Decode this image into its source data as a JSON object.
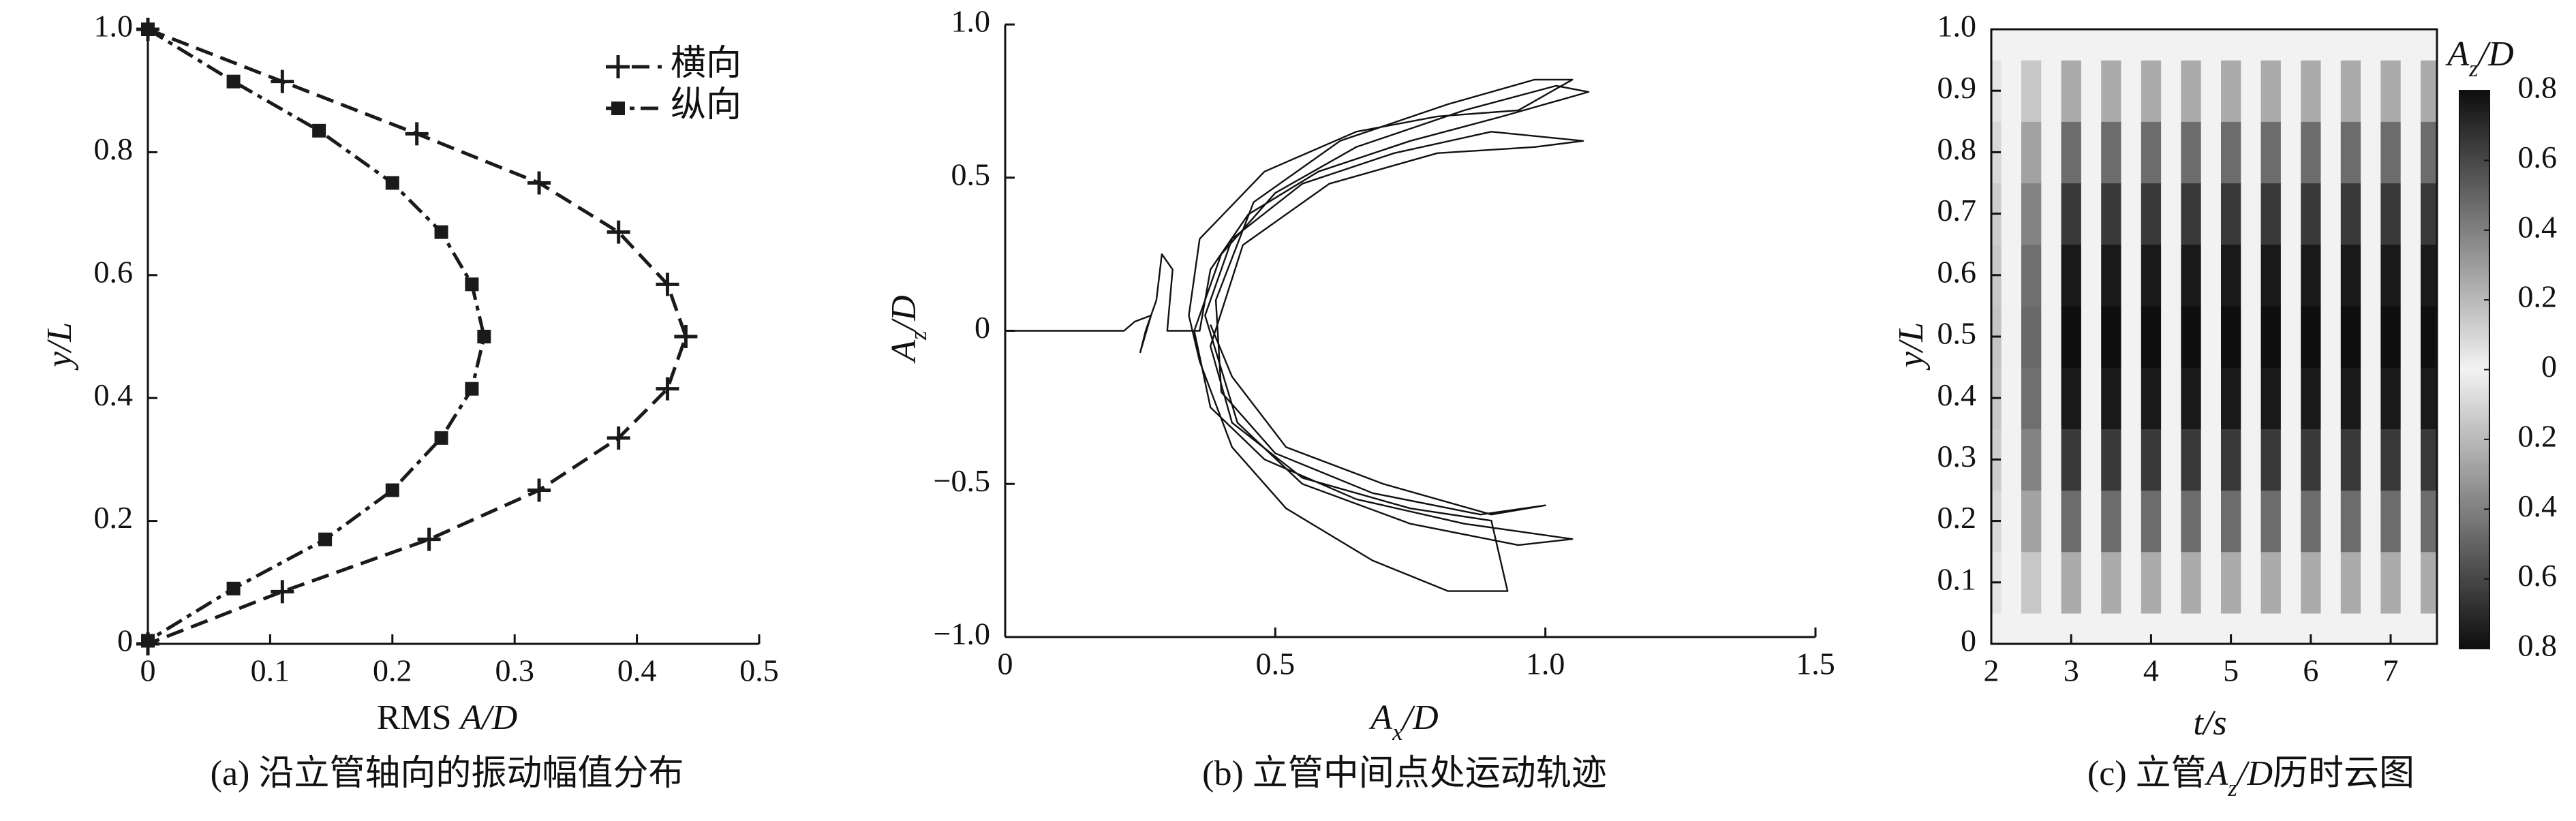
{
  "chart_data": [
    {
      "type": "line",
      "caption": "(a) 沿立管轴向的振动幅值分布",
      "x_label": [
        {
          "text": "RMS "
        },
        {
          "text": "A/D",
          "style": "italic"
        }
      ],
      "y_label": [
        {
          "text": "y/L",
          "style": "italic"
        }
      ],
      "xlim": [
        0,
        0.5
      ],
      "xticks": [
        0,
        0.1,
        0.2,
        0.3,
        0.4,
        0.5
      ],
      "ylim": [
        0,
        1
      ],
      "yticks": [
        0,
        0.2,
        0.4,
        0.6,
        0.8,
        {
          "value": 1,
          "label": "1.0"
        }
      ],
      "legend": "upper right",
      "frame": "left-bottom",
      "series": [
        {
          "name": "横向",
          "color": "#1a1a1a",
          "marker": "plus",
          "linestyle": "dashed",
          "x": [
            0,
            0.11,
            0.22,
            0.32,
            0.385,
            0.425,
            0.44,
            0.425,
            0.385,
            0.32,
            0.23,
            0.11,
            0
          ],
          "values": [
            1.0,
            0.915,
            0.83,
            0.75,
            0.67,
            0.585,
            0.5,
            0.415,
            0.335,
            0.25,
            0.17,
            0.085,
            0.0
          ]
        },
        {
          "name": "纵向",
          "color": "#1a1a1a",
          "marker": "square",
          "linestyle": "dashdot",
          "x": [
            0,
            0.07,
            0.14,
            0.2,
            0.24,
            0.265,
            0.275,
            0.265,
            0.24,
            0.2,
            0.145,
            0.07,
            0
          ],
          "values": [
            1.0,
            0.915,
            0.835,
            0.75,
            0.67,
            0.585,
            0.5,
            0.415,
            0.335,
            0.25,
            0.17,
            0.09,
            0.005
          ]
        }
      ]
    },
    {
      "type": "line",
      "caption": "(b) 立管中间点处运动轨迹",
      "x_label": [
        {
          "text": "A",
          "style": "italic"
        },
        {
          "text": "x",
          "style": "sub"
        },
        {
          "text": "/D",
          "style": "italic"
        }
      ],
      "y_label": [
        {
          "text": "A",
          "style": "italic"
        },
        {
          "text": "z",
          "style": "sub"
        },
        {
          "text": "/D",
          "style": "italic"
        }
      ],
      "xlim": [
        0,
        1.5
      ],
      "xticks": [
        0,
        0.5,
        {
          "value": 1,
          "label": "1.0"
        },
        1.5
      ],
      "ylim": [
        -1,
        1
      ],
      "yticks": [
        {
          "value": -1,
          "label": "−1.0"
        },
        {
          "value": -0.5,
          "label": "−0.5"
        },
        0,
        0.5,
        {
          "value": 1,
          "label": "1.0"
        }
      ],
      "frame": "left-bottom",
      "series": [
        {
          "color": "#111111",
          "x": [
            0,
            0.22,
            0.24,
            0.27,
            0.25,
            0.26,
            0.28,
            0.29,
            0.31,
            0.3,
            0.36,
            0.38,
            0.45,
            0.58,
            0.75,
            0.92,
            1.08,
            1.02,
            0.85,
            0.65,
            0.5,
            0.4,
            0.35,
            0.38,
            0.48,
            0.65,
            0.85,
            1.05,
            0.95,
            0.75,
            0.55,
            0.43,
            0.37,
            0.42,
            0.55,
            0.72,
            0.9,
            1.07,
            0.98,
            0.8,
            0.6,
            0.44,
            0.38,
            0.42,
            0.55,
            0.75,
            0.9,
            0.93,
            0.82,
            0.68,
            0.52,
            0.42,
            0.36,
            0.34,
            0.36,
            0.48,
            0.65,
            0.8,
            0.95,
            1.05,
            0.98,
            0.82,
            0.62,
            0.46,
            0.39,
            0.4,
            0.5,
            0.68,
            0.88,
            1.0,
            0.9,
            0.7,
            0.52,
            0.42,
            0.38
          ],
          "values": [
            0,
            0,
            0.03,
            0.05,
            -0.07,
            0,
            0.1,
            0.25,
            0.2,
            0,
            0,
            0.2,
            0.38,
            0.52,
            0.62,
            0.7,
            0.78,
            0.8,
            0.72,
            0.6,
            0.45,
            0.25,
            0.0,
            -0.25,
            -0.42,
            -0.55,
            -0.63,
            -0.68,
            -0.7,
            -0.63,
            -0.5,
            -0.3,
            0.05,
            0.3,
            0.48,
            0.58,
            0.65,
            0.62,
            0.6,
            0.58,
            0.48,
            0.28,
            -0.05,
            -0.3,
            -0.48,
            -0.58,
            -0.62,
            -0.85,
            -0.85,
            -0.75,
            -0.58,
            -0.38,
            -0.1,
            0.05,
            0.3,
            0.52,
            0.65,
            0.7,
            0.72,
            0.82,
            0.82,
            0.74,
            0.62,
            0.42,
            0.1,
            -0.2,
            -0.4,
            -0.53,
            -0.6,
            -0.57,
            -0.6,
            -0.5,
            -0.38,
            -0.15,
            0.02
          ]
        }
      ]
    },
    {
      "type": "heatmap",
      "caption": [
        {
          "text": "(c) 立管"
        },
        {
          "text": "A",
          "style": "italic"
        },
        {
          "text": "z",
          "style": "sub"
        },
        {
          "text": "/D",
          "style": "italic"
        },
        {
          "text": "历时云图"
        }
      ],
      "x_label": [
        {
          "text": "t/s",
          "style": "italic"
        }
      ],
      "y_label": [
        {
          "text": "y/L",
          "style": "italic"
        }
      ],
      "colorbar_label": [
        {
          "text": "A",
          "style": "italic"
        },
        {
          "text": "z",
          "style": "sub"
        },
        {
          "text": "/D",
          "style": "italic"
        }
      ],
      "xlim": [
        2,
        7.58
      ],
      "xticks": [
        2,
        3,
        4,
        5,
        6,
        7
      ],
      "ylim": [
        0,
        1
      ],
      "yticks": [
        0,
        0.1,
        0.2,
        0.3,
        0.4,
        0.5,
        0.6,
        0.7,
        0.8,
        0.9,
        {
          "value": 1,
          "label": "1.0"
        }
      ],
      "frame": "box",
      "clim": [
        -0.8,
        0.8
      ],
      "cticks": [
        0.8,
        0.6,
        0.4,
        0.2,
        0,
        {
          "value": -0.2,
          "label": "0.2"
        },
        {
          "value": -0.4,
          "label": "0.4"
        },
        {
          "value": -0.6,
          "label": "0.6"
        },
        {
          "value": -0.8,
          "label": "0.8"
        }
      ],
      "x": [
        2,
        2.25,
        2.5,
        2.75,
        3,
        3.25,
        3.5,
        3.75,
        4,
        4.25,
        4.5,
        4.75,
        5,
        5.25,
        5.5,
        5.75,
        6,
        6.25,
        6.5,
        6.75,
        7,
        7.25,
        7.5
      ],
      "y": [
        0,
        0.1,
        0.2,
        0.3,
        0.4,
        0.5,
        0.6,
        0.7,
        0.8,
        0.9,
        1.0
      ],
      "z": [
        [
          0,
          0,
          0,
          0,
          0,
          0,
          0,
          0,
          0,
          0,
          0,
          0,
          0,
          0,
          0,
          0,
          0,
          0,
          0,
          0,
          0,
          0,
          0
        ],
        [
          0.05,
          0,
          -0.15,
          0,
          0.25,
          0,
          -0.25,
          0,
          0.25,
          0,
          -0.25,
          0,
          0.25,
          0,
          -0.25,
          0,
          0.25,
          0,
          -0.25,
          0,
          0.25,
          0,
          -0.25
        ],
        [
          0.09,
          0,
          -0.28,
          0,
          0.47,
          0,
          -0.47,
          0,
          0.47,
          0,
          -0.47,
          0,
          0.47,
          0,
          -0.47,
          0,
          0.47,
          0,
          -0.47,
          0,
          0.47,
          0,
          -0.47
        ],
        [
          0.13,
          0,
          -0.39,
          0,
          0.65,
          0,
          -0.65,
          0,
          0.65,
          0,
          -0.65,
          0,
          0.65,
          0,
          -0.65,
          0,
          0.65,
          0,
          -0.65,
          0,
          0.65,
          0,
          -0.65
        ],
        [
          0.15,
          0,
          -0.46,
          0,
          0.76,
          0,
          -0.76,
          0,
          0.76,
          0,
          -0.76,
          0,
          0.76,
          0,
          -0.76,
          0,
          0.76,
          0,
          -0.76,
          0,
          0.76,
          0,
          -0.76
        ],
        [
          0.16,
          0,
          -0.48,
          0,
          0.8,
          0,
          -0.8,
          0,
          0.8,
          0,
          -0.8,
          0,
          0.8,
          0,
          -0.8,
          0,
          0.8,
          0,
          -0.8,
          0,
          0.8,
          0,
          -0.8
        ],
        [
          0.15,
          0,
          -0.46,
          0,
          0.76,
          0,
          -0.76,
          0,
          0.76,
          0,
          -0.76,
          0,
          0.76,
          0,
          -0.76,
          0,
          0.76,
          0,
          -0.76,
          0,
          0.76,
          0,
          -0.76
        ],
        [
          0.13,
          0,
          -0.39,
          0,
          0.65,
          0,
          -0.65,
          0,
          0.65,
          0,
          -0.65,
          0,
          0.65,
          0,
          -0.65,
          0,
          0.65,
          0,
          -0.65,
          0,
          0.65,
          0,
          -0.65
        ],
        [
          0.09,
          0,
          -0.28,
          0,
          0.47,
          0,
          -0.47,
          0,
          0.47,
          0,
          -0.47,
          0,
          0.47,
          0,
          -0.47,
          0,
          0.47,
          0,
          -0.47,
          0,
          0.47,
          0,
          -0.47
        ],
        [
          0.05,
          0,
          -0.15,
          0,
          0.25,
          0,
          -0.25,
          0,
          0.25,
          0,
          -0.25,
          0,
          0.25,
          0,
          -0.25,
          0,
          0.25,
          0,
          -0.25,
          0,
          0.25,
          0,
          -0.25
        ],
        [
          0,
          0,
          0,
          0,
          0,
          0,
          0,
          0,
          0,
          0,
          0,
          0,
          0,
          0,
          0,
          0,
          0,
          0,
          0,
          0,
          0,
          0,
          0
        ]
      ]
    }
  ]
}
